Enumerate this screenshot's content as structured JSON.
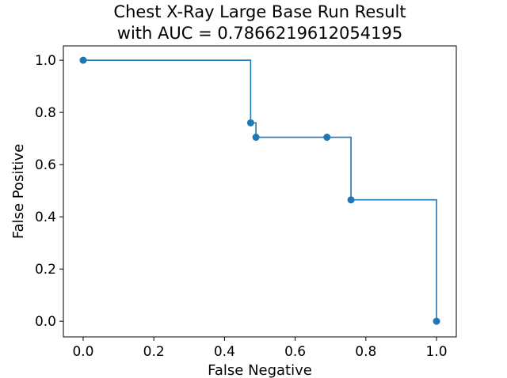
{
  "chart_data": {
    "type": "line",
    "title_lines": [
      "Chest X-Ray Large Base Run Result",
      "with AUC = 0.7866219612054195"
    ],
    "xlabel": "False Negative",
    "ylabel": "False Positive",
    "xlim": [
      -0.056,
      1.056
    ],
    "ylim": [
      -0.06,
      1.055
    ],
    "xticks": [
      0.0,
      0.2,
      0.4,
      0.6,
      0.8,
      1.0
    ],
    "xtick_labels": [
      "0.0",
      "0.2",
      "0.4",
      "0.6",
      "0.8",
      "1.0"
    ],
    "yticks": [
      0.0,
      0.2,
      0.4,
      0.6,
      0.8,
      1.0
    ],
    "ytick_labels": [
      "0.0",
      "0.2",
      "0.4",
      "0.6",
      "0.8",
      "1.0"
    ],
    "grid": false,
    "drawstyle": "steps-post",
    "line_color": "#1f77b4",
    "series": [
      {
        "x": [
          0.0,
          0.474,
          0.489,
          0.69,
          0.758,
          1.0
        ],
        "y": [
          1.0,
          0.76,
          0.705,
          0.705,
          0.465,
          0.0
        ]
      }
    ]
  }
}
